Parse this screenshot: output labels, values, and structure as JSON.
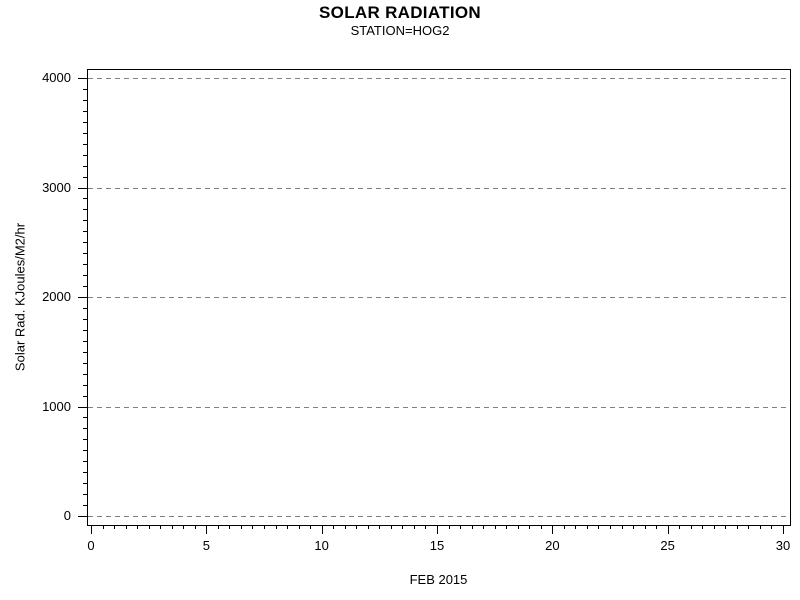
{
  "page": {
    "background": "#ffffff",
    "text_color": "#000000"
  },
  "chart_data": {
    "type": "line",
    "title": "SOLAR RADIATION",
    "subtitle": "STATION=HOG2",
    "xlabel": "FEB 2015",
    "ylabel": "Solar Rad. KJoules/M2/hr",
    "xlim": [
      0,
      30
    ],
    "ylim": [
      0,
      4000
    ],
    "x_major_ticks": [
      0,
      5,
      10,
      15,
      20,
      25,
      30
    ],
    "y_major_ticks": [
      0,
      1000,
      2000,
      3000,
      4000
    ],
    "x_minor_step": 0.5,
    "y_minor_step": 100,
    "grid": "horizontal dashed gridlines at every y major tick",
    "gridline_color": "#808080",
    "axis_color": "#000000",
    "legend": "none",
    "series": []
  }
}
